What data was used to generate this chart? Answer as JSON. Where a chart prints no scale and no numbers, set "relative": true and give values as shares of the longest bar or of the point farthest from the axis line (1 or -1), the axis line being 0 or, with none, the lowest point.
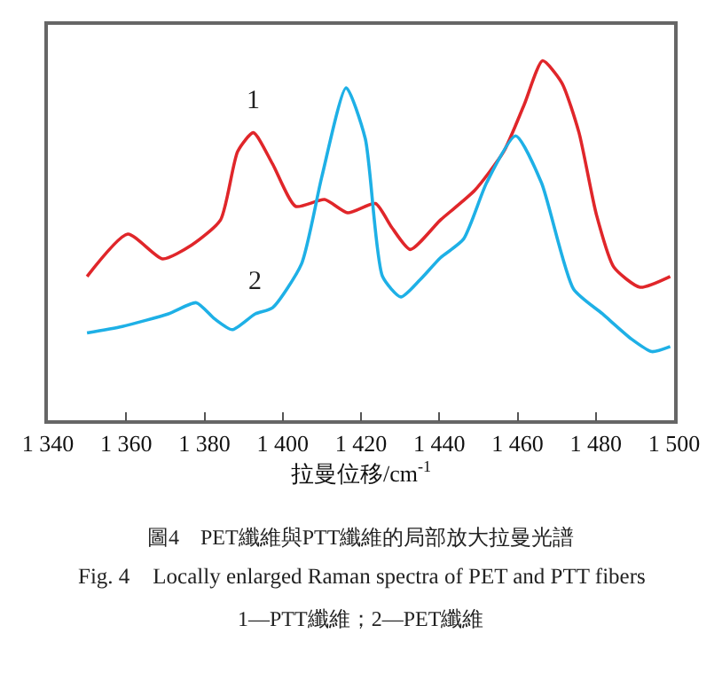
{
  "chart_data": {
    "type": "line",
    "relative": true,
    "title": "圖4　PET纖維與PTT纖維的局部放大拉曼光譜",
    "subtitle": "Fig. 4　Locally enlarged Raman spectra of PET and PTT fibers",
    "annotations": [
      "1—PTT纖維；2—PET纖維"
    ],
    "xlabel": "拉曼位移/cm$^{-1}$",
    "xlim": [
      1340,
      1500
    ],
    "xticks": [
      {
        "value": 1340,
        "label": "1 340"
      },
      {
        "value": 1360,
        "label": "1 360"
      },
      {
        "value": 1380,
        "label": "1 380"
      },
      {
        "value": 1400,
        "label": "1 400"
      },
      {
        "value": 1420,
        "label": "1 420"
      },
      {
        "value": 1440,
        "label": "1 440"
      },
      {
        "value": 1460,
        "label": "1 460"
      },
      {
        "value": 1480,
        "label": "1 480"
      },
      {
        "value": 1500,
        "label": "1 500"
      }
    ],
    "legend": false,
    "series": [
      {
        "name": "1",
        "color": "#e0262a",
        "x": [
          1350,
          1360.4,
          1369.3,
          1376.7,
          1384.1,
          1388.5,
          1392.5,
          1397.4,
          1403.3,
          1410.7,
          1416.6,
          1423.7,
          1427.7,
          1432.6,
          1440.3,
          1449.1,
          1456.5,
          1461.7,
          1466.4,
          1471.3,
          1475.7,
          1480.1,
          1484.6,
          1491.3,
          1499
        ],
        "values": [
          0.4,
          0.518,
          0.449,
          0.487,
          0.557,
          0.748,
          0.8,
          0.713,
          0.595,
          0.614,
          0.577,
          0.603,
          0.539,
          0.475,
          0.557,
          0.64,
          0.748,
          0.878,
          1.0,
          0.939,
          0.8,
          0.574,
          0.426,
          0.37,
          0.4
        ]
      },
      {
        "name": "2",
        "color": "#1eb0e6",
        "x": [
          1350,
          1359,
          1370.8,
          1377.9,
          1382.6,
          1387.1,
          1393,
          1397.4,
          1404.8,
          1410,
          1416.2,
          1421.1,
          1425.5,
          1430.2,
          1435.1,
          1440.3,
          1446.2,
          1452.1,
          1459.5,
          1466.1,
          1474.3,
          1481.7,
          1489.1,
          1494.3,
          1499
        ],
        "values": [
          0.243,
          0.261,
          0.296,
          0.327,
          0.282,
          0.252,
          0.296,
          0.313,
          0.435,
          0.678,
          0.925,
          0.783,
          0.4,
          0.343,
          0.391,
          0.452,
          0.504,
          0.661,
          0.791,
          0.661,
          0.365,
          0.296,
          0.226,
          0.191,
          0.205
        ]
      }
    ]
  }
}
